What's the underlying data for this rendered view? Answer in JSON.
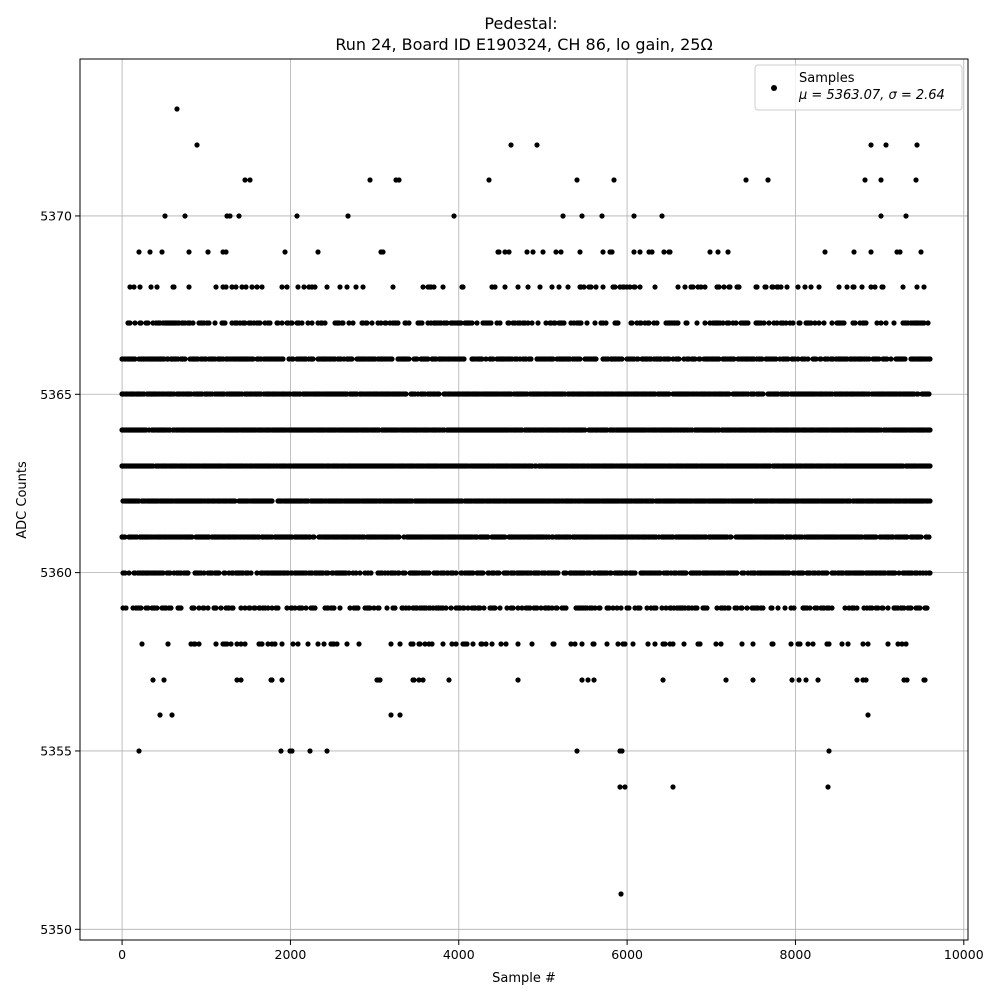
{
  "chart_data": {
    "type": "scatter",
    "title_line1": "Pedestal:",
    "title_line2": "Run 24, Board ID E190324, CH 86, lo gain, 25Ω",
    "xlabel": "Sample #",
    "ylabel": "ADC Counts",
    "xlim": [
      -500,
      10050
    ],
    "ylim": [
      5349.7,
      5374.4
    ],
    "xticks": [
      0,
      2000,
      4000,
      6000,
      8000,
      10000
    ],
    "xtick_labels": [
      "0",
      "2000",
      "4000",
      "6000",
      "8000",
      "10000"
    ],
    "yticks": [
      5350,
      5355,
      5360,
      5365,
      5370
    ],
    "ytick_labels": [
      "5350",
      "5355",
      "5360",
      "5365",
      "5370"
    ],
    "grid": true,
    "legend_position": "top-right",
    "series": [
      {
        "name": "Samples",
        "color": "#000000",
        "marker": "circle",
        "legend_stats": "μ = 5363.07, σ = 2.64",
        "mu": 5363.07,
        "sigma": 2.64,
        "n_samples": 9600,
        "outliers": [
          [
            650,
            5373
          ],
          [
            890,
            5372
          ],
          [
            4620,
            5372
          ],
          [
            4930,
            5372
          ],
          [
            8900,
            5372
          ],
          [
            9070,
            5372
          ],
          [
            9440,
            5372
          ],
          [
            1460,
            5371
          ],
          [
            1520,
            5371
          ],
          [
            2950,
            5371
          ],
          [
            3260,
            5371
          ],
          [
            3290,
            5371
          ],
          [
            4360,
            5371
          ],
          [
            5400,
            5371
          ],
          [
            5840,
            5371
          ],
          [
            7410,
            5371
          ],
          [
            7670,
            5371
          ],
          [
            8830,
            5371
          ],
          [
            9020,
            5371
          ],
          [
            9430,
            5371
          ],
          [
            200,
            5355
          ],
          [
            1890,
            5355
          ],
          [
            2000,
            5355
          ],
          [
            2020,
            5355
          ],
          [
            2230,
            5355
          ],
          [
            2430,
            5355
          ],
          [
            5400,
            5355
          ],
          [
            5920,
            5355
          ],
          [
            5940,
            5355
          ],
          [
            8400,
            5355
          ],
          [
            5920,
            5354
          ],
          [
            5980,
            5354
          ],
          [
            6550,
            5354
          ],
          [
            8390,
            5354
          ],
          [
            5930,
            5351
          ]
        ]
      }
    ]
  }
}
